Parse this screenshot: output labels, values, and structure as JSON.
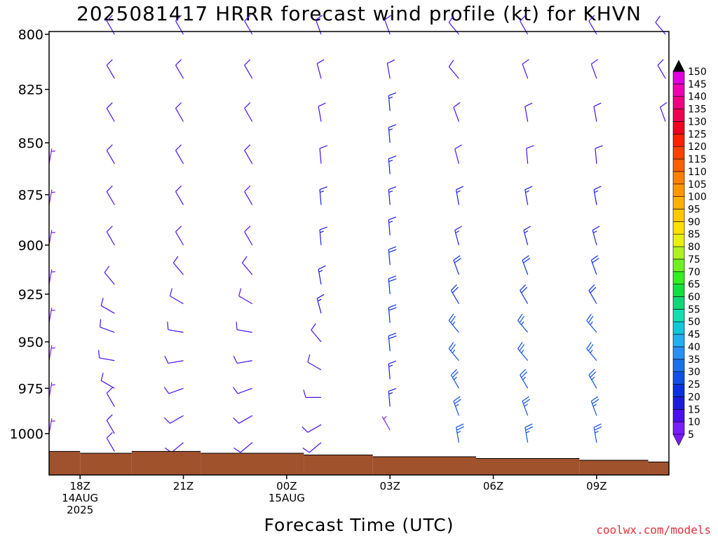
{
  "title": "2025081417 HRRR forecast wind profile (kt) for KHVN",
  "credit": "coolwx.com/models",
  "chart_data": {
    "type": "wind-barb-profile",
    "xlabel": "Forecast Time (UTC)",
    "ylim": [
      800,
      1020
    ],
    "yscale": "log-pressure",
    "yticks": [
      800,
      825,
      850,
      875,
      900,
      925,
      950,
      975,
      1000
    ],
    "x_range_hours": [
      -0.9,
      17.1
    ],
    "xticks": [
      {
        "hour": 0,
        "lines": [
          "18Z",
          "14AUG",
          "2025"
        ]
      },
      {
        "hour": 3,
        "lines": [
          "21Z"
        ]
      },
      {
        "hour": 6,
        "lines": [
          "00Z",
          "15AUG"
        ]
      },
      {
        "hour": 9,
        "lines": [
          "03Z"
        ]
      },
      {
        "hour": 12,
        "lines": [
          "06Z"
        ]
      },
      {
        "hour": 15,
        "lines": [
          "09Z"
        ]
      }
    ],
    "barb_hours": [
      -0.9,
      1,
      3,
      5,
      7,
      9,
      11,
      13,
      15,
      17
    ],
    "barb_levels": [
      800,
      805,
      810,
      815,
      820,
      825,
      830,
      835,
      840,
      845,
      850,
      855,
      860,
      865,
      870,
      875,
      880,
      885,
      890,
      895,
      900,
      905,
      910,
      915,
      920,
      925,
      930,
      935,
      940,
      945,
      950,
      955,
      960,
      965,
      970,
      975,
      980,
      985,
      990,
      995,
      1000,
      1005,
      1010
    ],
    "series": [
      {
        "hour": -0.9,
        "surface": 1010,
        "winds": [
          [
            860,
            10,
            5
          ],
          [
            880,
            10,
            5
          ],
          [
            900,
            10,
            5
          ],
          [
            920,
            10,
            5
          ],
          [
            940,
            10,
            5
          ],
          [
            960,
            10,
            5
          ],
          [
            980,
            10,
            5
          ],
          [
            1000,
            10,
            5
          ]
        ]
      },
      {
        "hour": 1,
        "surface": 1012,
        "winds": [
          [
            800,
            330,
            10
          ],
          [
            820,
            330,
            10
          ],
          [
            840,
            330,
            10
          ],
          [
            860,
            330,
            10
          ],
          [
            880,
            330,
            10
          ],
          [
            900,
            330,
            10
          ],
          [
            920,
            320,
            10
          ],
          [
            935,
            300,
            10
          ],
          [
            945,
            290,
            10
          ],
          [
            960,
            280,
            10
          ],
          [
            975,
            300,
            10
          ],
          [
            985,
            330,
            10
          ],
          [
            1000,
            330,
            10
          ],
          [
            1010,
            330,
            10
          ]
        ]
      },
      {
        "hour": 3,
        "surface": 1012,
        "winds": [
          [
            800,
            330,
            10
          ],
          [
            820,
            330,
            10
          ],
          [
            840,
            330,
            10
          ],
          [
            860,
            330,
            10
          ],
          [
            880,
            330,
            10
          ],
          [
            900,
            330,
            10
          ],
          [
            915,
            320,
            10
          ],
          [
            930,
            300,
            10
          ],
          [
            945,
            280,
            10
          ],
          [
            960,
            260,
            10
          ],
          [
            975,
            250,
            10
          ],
          [
            990,
            240,
            10
          ],
          [
            1005,
            230,
            10
          ]
        ]
      },
      {
        "hour": 5,
        "surface": 1012,
        "winds": [
          [
            800,
            330,
            10
          ],
          [
            820,
            330,
            10
          ],
          [
            840,
            330,
            10
          ],
          [
            860,
            330,
            10
          ],
          [
            880,
            330,
            10
          ],
          [
            900,
            330,
            10
          ],
          [
            915,
            320,
            10
          ],
          [
            930,
            300,
            10
          ],
          [
            945,
            280,
            10
          ],
          [
            960,
            260,
            10
          ],
          [
            975,
            250,
            10
          ],
          [
            990,
            240,
            10
          ],
          [
            1005,
            230,
            10
          ]
        ]
      },
      {
        "hour": 7,
        "surface": 1013,
        "winds": [
          [
            800,
            340,
            10
          ],
          [
            820,
            345,
            10
          ],
          [
            840,
            350,
            10
          ],
          [
            860,
            355,
            10
          ],
          [
            880,
            355,
            15
          ],
          [
            900,
            355,
            15
          ],
          [
            920,
            350,
            15
          ],
          [
            935,
            345,
            15
          ],
          [
            950,
            320,
            10
          ],
          [
            965,
            300,
            10
          ],
          [
            980,
            270,
            10
          ],
          [
            995,
            240,
            10
          ],
          [
            1005,
            230,
            10
          ]
        ]
      },
      {
        "hour": 9,
        "surface": 1013,
        "winds": [
          [
            800,
            340,
            10
          ],
          [
            820,
            350,
            10
          ],
          [
            835,
            355,
            15
          ],
          [
            850,
            355,
            15
          ],
          [
            865,
            355,
            15
          ],
          [
            880,
            355,
            15
          ],
          [
            895,
            355,
            15
          ],
          [
            910,
            355,
            20
          ],
          [
            925,
            355,
            20
          ],
          [
            940,
            355,
            20
          ],
          [
            955,
            355,
            20
          ],
          [
            970,
            355,
            15
          ],
          [
            985,
            355,
            15
          ],
          [
            998,
            330,
            5
          ]
        ]
      },
      {
        "hour": 11,
        "surface": 1014,
        "winds": [
          [
            800,
            320,
            10
          ],
          [
            820,
            320,
            10
          ],
          [
            840,
            340,
            10
          ],
          [
            860,
            345,
            10
          ],
          [
            880,
            350,
            15
          ],
          [
            900,
            345,
            15
          ],
          [
            915,
            340,
            20
          ],
          [
            930,
            330,
            20
          ],
          [
            945,
            320,
            25
          ],
          [
            960,
            320,
            25
          ],
          [
            975,
            330,
            25
          ],
          [
            990,
            340,
            25
          ],
          [
            1005,
            350,
            25
          ]
        ]
      },
      {
        "hour": 13,
        "surface": 1014,
        "winds": [
          [
            800,
            330,
            10
          ],
          [
            820,
            340,
            10
          ],
          [
            840,
            350,
            10
          ],
          [
            860,
            355,
            10
          ],
          [
            880,
            350,
            15
          ],
          [
            900,
            345,
            15
          ],
          [
            915,
            340,
            20
          ],
          [
            930,
            330,
            20
          ],
          [
            945,
            320,
            25
          ],
          [
            960,
            320,
            25
          ],
          [
            975,
            330,
            25
          ],
          [
            990,
            340,
            25
          ],
          [
            1005,
            350,
            25
          ]
        ]
      },
      {
        "hour": 15,
        "surface": 1015,
        "winds": [
          [
            800,
            330,
            10
          ],
          [
            820,
            340,
            10
          ],
          [
            840,
            350,
            10
          ],
          [
            860,
            355,
            10
          ],
          [
            880,
            350,
            15
          ],
          [
            900,
            345,
            15
          ],
          [
            915,
            340,
            20
          ],
          [
            930,
            330,
            20
          ],
          [
            945,
            320,
            25
          ],
          [
            960,
            320,
            25
          ],
          [
            975,
            330,
            25
          ],
          [
            990,
            340,
            25
          ],
          [
            1005,
            350,
            25
          ]
        ]
      },
      {
        "hour": 17,
        "surface": 1016,
        "winds": [
          [
            800,
            320,
            10
          ],
          [
            820,
            330,
            10
          ],
          [
            840,
            340,
            10
          ]
        ]
      }
    ],
    "surface_steps": [
      {
        "start": -0.9,
        "end": 0,
        "pressure": 1010
      },
      {
        "start": 0,
        "end": 1.5,
        "pressure": 1011
      },
      {
        "start": 1.5,
        "end": 3.5,
        "pressure": 1010
      },
      {
        "start": 3.5,
        "end": 6.5,
        "pressure": 1011
      },
      {
        "start": 6.5,
        "end": 8.5,
        "pressure": 1012
      },
      {
        "start": 8.5,
        "end": 11.5,
        "pressure": 1013
      },
      {
        "start": 11.5,
        "end": 14.5,
        "pressure": 1014
      },
      {
        "start": 14.5,
        "end": 16.5,
        "pressure": 1015
      },
      {
        "start": 16.5,
        "end": 17.1,
        "pressure": 1016
      }
    ],
    "colorbar": {
      "ticks": [
        5,
        10,
        15,
        20,
        25,
        30,
        35,
        40,
        45,
        50,
        55,
        60,
        65,
        70,
        75,
        80,
        85,
        90,
        95,
        100,
        105,
        110,
        115,
        120,
        125,
        130,
        135,
        140,
        145,
        150
      ],
      "colors": [
        "#7a1cff",
        "#4a10f0",
        "#1c1ce0",
        "#0a30e0",
        "#1050e8",
        "#1c70ec",
        "#2890f0",
        "#20b0f0",
        "#10c8d8",
        "#10e0b0",
        "#10d878",
        "#10e040",
        "#30f020",
        "#70f020",
        "#b0f020",
        "#e8f010",
        "#ffe000",
        "#ffc800",
        "#ffb000",
        "#ff9800",
        "#ff8000",
        "#ff6000",
        "#ff4000",
        "#ff2000",
        "#f00020",
        "#f00050",
        "#f00080",
        "#f000b0",
        "#e000e0",
        "#000000"
      ]
    },
    "colors": {
      "surface_fill": "#a0522d",
      "axis": "#000000"
    }
  }
}
